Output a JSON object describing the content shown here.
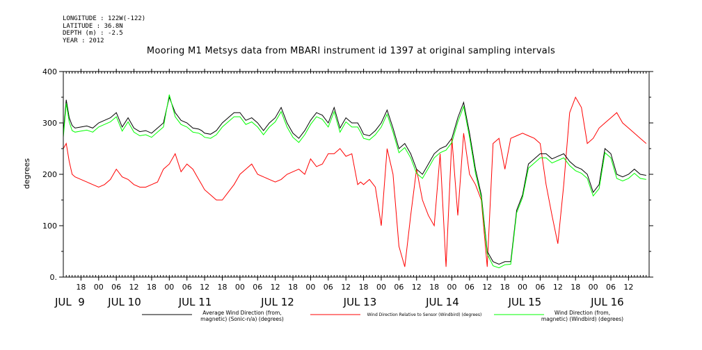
{
  "header": {
    "meta": [
      "LONGITUDE : 122W(-122)",
      "LATITUDE : 36.8N",
      "DEPTH (m) : -2.5",
      "YEAR : 2012"
    ],
    "title": "Mooring M1 Metsys data from MBARI instrument id 1397 at original sampling intervals"
  },
  "chart_data": {
    "type": "line",
    "title": "Mooring M1 Metsys data from MBARI instrument id 1397 at original sampling intervals",
    "ylabel": "degrees",
    "xlabel": "",
    "ylim": [
      0,
      400
    ],
    "yticks": [
      0,
      100,
      200,
      300,
      400
    ],
    "ytick_labels": [
      "0.",
      "100",
      "200",
      "300",
      "400"
    ],
    "x_unit": "hours since 2012-07-08 12:00",
    "xlim": [
      0,
      199
    ],
    "xticks": [
      6,
      12,
      18,
      24,
      30,
      36,
      42,
      48,
      54,
      60,
      66,
      72,
      78,
      84,
      90,
      96,
      102,
      108,
      114,
      120,
      126,
      132,
      138,
      144,
      150,
      156,
      162,
      168,
      174,
      180,
      186,
      192
    ],
    "xtick_labels": [
      "18",
      "00",
      "06",
      "12",
      "18",
      "00",
      "06",
      "12",
      "18",
      "00",
      "06",
      "12",
      "18",
      "00",
      "06",
      "12",
      "18",
      "00",
      "06",
      "12",
      "18",
      "00",
      "06",
      "12",
      "18",
      "00",
      "06",
      "12",
      "18",
      "00",
      "06",
      "12"
    ],
    "day_labels": [
      {
        "x": 0,
        "label": "JUL  9"
      },
      {
        "x": 18,
        "label": "JUL 10"
      },
      {
        "x": 42,
        "label": "JUL 11"
      },
      {
        "x": 70,
        "label": "JUL 12"
      },
      {
        "x": 98,
        "label": "JUL 13"
      },
      {
        "x": 126,
        "label": "JUL 14"
      },
      {
        "x": 154,
        "label": "JUL 15"
      },
      {
        "x": 182,
        "label": "JUL 16"
      }
    ],
    "grid": false,
    "legend_position": "bottom",
    "series": [
      {
        "name": "Average Wind Direction (from, magnetic) (Sonic-n/a) (degrees)",
        "legend_lines": [
          "Average Wind Direction (from,",
          "magnetic) (Sonic-n/a) (degrees)"
        ],
        "color": "#000000",
        "x": [
          0,
          1,
          2,
          3,
          4,
          6,
          8,
          10,
          12,
          14,
          16,
          18,
          20,
          22,
          24,
          26,
          28,
          30,
          32,
          34,
          36,
          38,
          40,
          42,
          44,
          46,
          47,
          48,
          50,
          52,
          54,
          56,
          58,
          60,
          62,
          64,
          66,
          68,
          70,
          72,
          74,
          76,
          78,
          80,
          82,
          84,
          86,
          88,
          90,
          92,
          94,
          96,
          98,
          100,
          101,
          102,
          104,
          106,
          108,
          110,
          112,
          114,
          116,
          118,
          120,
          122,
          124,
          126,
          128,
          130,
          132,
          134,
          136,
          138,
          140,
          142,
          144,
          146,
          148,
          150,
          152,
          154,
          156,
          158,
          160,
          162,
          164,
          166,
          168,
          170,
          172,
          174,
          176,
          178,
          180,
          182,
          184,
          186,
          188,
          190,
          192,
          194,
          196,
          198
        ],
        "y": [
          280,
          345,
          310,
          295,
          290,
          292,
          294,
          290,
          300,
          305,
          310,
          320,
          292,
          310,
          290,
          283,
          285,
          280,
          290,
          300,
          350,
          320,
          305,
          300,
          290,
          288,
          285,
          280,
          278,
          285,
          300,
          310,
          320,
          320,
          305,
          310,
          300,
          285,
          300,
          310,
          330,
          300,
          280,
          270,
          285,
          305,
          320,
          315,
          300,
          330,
          290,
          310,
          300,
          300,
          290,
          278,
          275,
          285,
          300,
          325,
          290,
          250,
          260,
          240,
          210,
          200,
          220,
          240,
          250,
          255,
          270,
          310,
          340,
          280,
          210,
          160,
          50,
          30,
          25,
          30,
          30,
          130,
          160,
          220,
          230,
          240,
          240,
          230,
          235,
          240,
          225,
          215,
          210,
          200,
          165,
          180,
          250,
          240,
          200,
          195,
          200,
          210,
          200,
          198
        ]
      },
      {
        "name": "Wind Direction Relative to Sensor (Windbird) (degrees)",
        "legend_lines": [
          "Wind Direction Relative to Sensor (Windbird) (degrees)"
        ],
        "color": "#ff0000",
        "x": [
          0,
          1,
          2,
          3,
          4,
          6,
          8,
          10,
          12,
          14,
          16,
          18,
          20,
          22,
          24,
          26,
          28,
          30,
          32,
          34,
          36,
          38,
          40,
          42,
          44,
          46,
          47,
          48,
          50,
          52,
          54,
          56,
          58,
          60,
          62,
          64,
          66,
          68,
          70,
          72,
          74,
          76,
          78,
          80,
          82,
          84,
          86,
          88,
          90,
          92,
          94,
          96,
          98,
          100,
          101,
          102,
          104,
          106,
          108,
          110,
          112,
          114,
          116,
          118,
          120,
          122,
          124,
          126,
          128,
          130,
          132,
          134,
          136,
          138,
          140,
          142,
          144,
          146,
          148,
          150,
          152,
          154,
          156,
          158,
          160,
          162,
          164,
          166,
          168,
          170,
          172,
          174,
          176,
          178,
          180,
          182,
          184,
          186,
          188,
          190,
          192,
          194,
          196,
          198
        ],
        "y": [
          250,
          260,
          225,
          200,
          195,
          190,
          185,
          180,
          175,
          180,
          190,
          210,
          195,
          190,
          180,
          175,
          175,
          180,
          185,
          210,
          220,
          240,
          205,
          220,
          210,
          190,
          180,
          170,
          160,
          150,
          150,
          165,
          180,
          200,
          210,
          220,
          200,
          195,
          190,
          185,
          190,
          200,
          205,
          210,
          200,
          230,
          215,
          220,
          240,
          240,
          250,
          235,
          240,
          180,
          185,
          180,
          190,
          175,
          100,
          250,
          200,
          60,
          20,
          120,
          210,
          150,
          120,
          100,
          240,
          20,
          270,
          120,
          280,
          200,
          180,
          150,
          20,
          260,
          270,
          210,
          270,
          275,
          280,
          275,
          270,
          260,
          180,
          120,
          65,
          180,
          320,
          350,
          330,
          260,
          270,
          290,
          300,
          310,
          320,
          300,
          290,
          280,
          270,
          260
        ]
      },
      {
        "name": "Wind Direction (from, magnetic) (Windbird) (degrees)",
        "legend_lines": [
          "Wind Direction (from,",
          "magnetic) (Windbird) (degrees)"
        ],
        "color": "#00ff00",
        "x": [
          0,
          1,
          2,
          3,
          4,
          6,
          8,
          10,
          12,
          14,
          16,
          18,
          20,
          22,
          24,
          26,
          28,
          30,
          32,
          34,
          36,
          38,
          40,
          42,
          44,
          46,
          47,
          48,
          50,
          52,
          54,
          56,
          58,
          60,
          62,
          64,
          66,
          68,
          70,
          72,
          74,
          76,
          78,
          80,
          82,
          84,
          86,
          88,
          90,
          92,
          94,
          96,
          98,
          100,
          101,
          102,
          104,
          106,
          108,
          110,
          112,
          114,
          116,
          118,
          120,
          122,
          124,
          126,
          128,
          130,
          132,
          134,
          136,
          138,
          140,
          142,
          144,
          146,
          148,
          150,
          152,
          154,
          156,
          158,
          160,
          162,
          164,
          166,
          168,
          170,
          172,
          174,
          176,
          178,
          180,
          182,
          184,
          186,
          188,
          190,
          192,
          194,
          196,
          198
        ],
        "y": [
          272,
          338,
          302,
          285,
          282,
          284,
          286,
          282,
          292,
          297,
          302,
          312,
          284,
          302,
          282,
          275,
          277,
          272,
          282,
          292,
          355,
          312,
          297,
          292,
          282,
          280,
          277,
          272,
          270,
          277,
          292,
          302,
          312,
          312,
          297,
          302,
          292,
          277,
          292,
          302,
          322,
          292,
          272,
          262,
          277,
          297,
          312,
          307,
          292,
          322,
          282,
          302,
          292,
          292,
          282,
          270,
          267,
          277,
          292,
          317,
          282,
          242,
          252,
          232,
          202,
          192,
          212,
          232,
          242,
          247,
          262,
          302,
          332,
          272,
          202,
          155,
          45,
          22,
          18,
          24,
          25,
          125,
          155,
          212,
          222,
          232,
          232,
          222,
          227,
          232,
          217,
          207,
          202,
          192,
          158,
          172,
          242,
          232,
          192,
          187,
          192,
          202,
          192,
          190
        ]
      }
    ]
  }
}
